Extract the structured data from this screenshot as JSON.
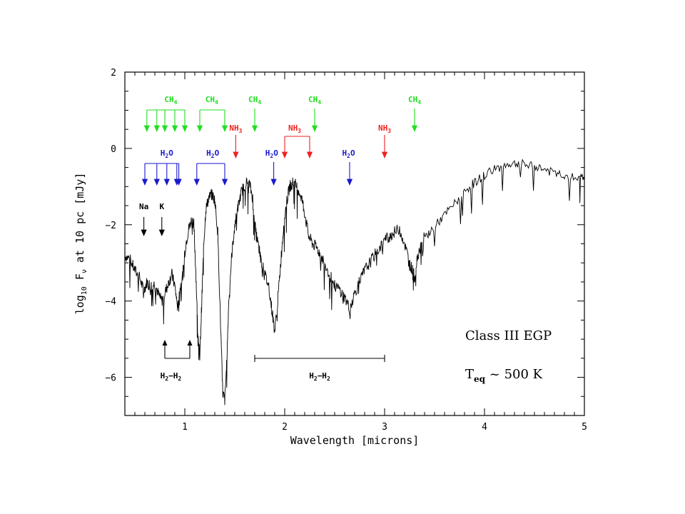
{
  "chart_data": {
    "type": "line",
    "title": "",
    "xlabel": "Wavelength  [microns]",
    "ylabel_parts": {
      "log": "log",
      "log_sub": "10",
      "F": " F",
      "F_sub": "ν",
      "rest": " at 10 pc [mJy]"
    },
    "xlim": [
      0.4,
      5.0
    ],
    "ylim": [
      -7,
      2
    ],
    "x_ticks": [
      1,
      2,
      3,
      4,
      5
    ],
    "x_tick_labels": [
      "1",
      "2",
      "3",
      "4",
      "5"
    ],
    "y_ticks": [
      -6,
      -4,
      -2,
      0,
      2
    ],
    "y_tick_labels": [
      "−6",
      "−4",
      "−2",
      "0",
      "2"
    ],
    "series": [
      {
        "color": "#000000",
        "points": [
          [
            0.4,
            -2.8
          ],
          [
            0.45,
            -2.9
          ],
          [
            0.5,
            -3.2
          ],
          [
            0.55,
            -3.4
          ],
          [
            0.59,
            -3.75
          ],
          [
            0.62,
            -3.5
          ],
          [
            0.66,
            -3.6
          ],
          [
            0.7,
            -3.55
          ],
          [
            0.74,
            -3.85
          ],
          [
            0.77,
            -4.0
          ],
          [
            0.8,
            -3.8
          ],
          [
            0.84,
            -3.5
          ],
          [
            0.87,
            -3.3
          ],
          [
            0.9,
            -3.6
          ],
          [
            0.93,
            -4.2
          ],
          [
            0.95,
            -3.7
          ],
          [
            0.98,
            -3.3
          ],
          [
            1.01,
            -2.5
          ],
          [
            1.04,
            -2.1
          ],
          [
            1.07,
            -1.85
          ],
          [
            1.09,
            -2.0
          ],
          [
            1.11,
            -3.2
          ],
          [
            1.13,
            -4.8
          ],
          [
            1.15,
            -5.5
          ],
          [
            1.17,
            -4.0
          ],
          [
            1.19,
            -2.5
          ],
          [
            1.21,
            -1.6
          ],
          [
            1.24,
            -1.3
          ],
          [
            1.27,
            -1.2
          ],
          [
            1.3,
            -1.35
          ],
          [
            1.33,
            -2.2
          ],
          [
            1.36,
            -4.8
          ],
          [
            1.38,
            -6.4
          ],
          [
            1.4,
            -6.6
          ],
          [
            1.42,
            -5.6
          ],
          [
            1.44,
            -4.0
          ],
          [
            1.47,
            -2.8
          ],
          [
            1.5,
            -2.0
          ],
          [
            1.53,
            -1.6
          ],
          [
            1.56,
            -1.2
          ],
          [
            1.59,
            -1.0
          ],
          [
            1.62,
            -0.9
          ],
          [
            1.65,
            -0.95
          ],
          [
            1.68,
            -1.3
          ],
          [
            1.71,
            -2.2
          ],
          [
            1.74,
            -2.6
          ],
          [
            1.76,
            -2.9
          ],
          [
            1.8,
            -3.3
          ],
          [
            1.84,
            -3.6
          ],
          [
            1.87,
            -4.2
          ],
          [
            1.9,
            -4.8
          ],
          [
            1.93,
            -4.0
          ],
          [
            1.96,
            -3.0
          ],
          [
            1.99,
            -2.0
          ],
          [
            2.02,
            -1.4
          ],
          [
            2.05,
            -1.0
          ],
          [
            2.08,
            -0.9
          ],
          [
            2.11,
            -0.95
          ],
          [
            2.14,
            -1.1
          ],
          [
            2.17,
            -1.3
          ],
          [
            2.2,
            -1.7
          ],
          [
            2.24,
            -2.3
          ],
          [
            2.28,
            -2.5
          ],
          [
            2.32,
            -2.6
          ],
          [
            2.36,
            -2.8
          ],
          [
            2.4,
            -3.0
          ],
          [
            2.45,
            -3.3
          ],
          [
            2.5,
            -3.6
          ],
          [
            2.55,
            -3.7
          ],
          [
            2.6,
            -3.9
          ],
          [
            2.65,
            -4.2
          ],
          [
            2.7,
            -3.8
          ],
          [
            2.75,
            -3.5
          ],
          [
            2.8,
            -3.2
          ],
          [
            2.85,
            -3.0
          ],
          [
            2.9,
            -2.8
          ],
          [
            2.95,
            -2.6
          ],
          [
            3.0,
            -2.4
          ],
          [
            3.05,
            -2.3
          ],
          [
            3.1,
            -2.2
          ],
          [
            3.15,
            -2.1
          ],
          [
            3.2,
            -2.5
          ],
          [
            3.25,
            -3.0
          ],
          [
            3.28,
            -3.2
          ],
          [
            3.3,
            -3.4
          ],
          [
            3.33,
            -2.8
          ],
          [
            3.38,
            -2.4
          ],
          [
            3.45,
            -2.2
          ],
          [
            3.55,
            -1.9
          ],
          [
            3.65,
            -1.6
          ],
          [
            3.75,
            -1.3
          ],
          [
            3.85,
            -1.0
          ],
          [
            3.95,
            -0.8
          ],
          [
            4.05,
            -0.6
          ],
          [
            4.15,
            -0.5
          ],
          [
            4.25,
            -0.4
          ],
          [
            4.35,
            -0.4
          ],
          [
            4.45,
            -0.45
          ],
          [
            4.55,
            -0.5
          ],
          [
            4.65,
            -0.6
          ],
          [
            4.75,
            -0.65
          ],
          [
            4.85,
            -0.75
          ],
          [
            4.95,
            -0.8
          ],
          [
            5.0,
            -0.7
          ]
        ]
      }
    ],
    "annotations": {
      "class_label": "Class III EGP",
      "teq_label": {
        "T": "T",
        "sub": "eq",
        "rest": " ~ 500 K"
      },
      "ch4": {
        "color": "#22dd22",
        "items": [
          {
            "label": "CH",
            "sub": "4",
            "x_label": 0.86,
            "arrows": [
              0.62,
              0.72,
              0.8,
              0.9,
              1.0
            ],
            "bracket": true
          },
          {
            "label": "CH",
            "sub": "4",
            "x_label": 1.27,
            "arrows": [
              1.15,
              1.4
            ],
            "bracket": true
          },
          {
            "label": "CH",
            "sub": "4",
            "x_label": 1.7,
            "arrows": [
              1.7
            ],
            "bracket": false
          },
          {
            "label": "CH",
            "sub": "4",
            "x_label": 2.3,
            "arrows": [
              2.3
            ],
            "bracket": false
          },
          {
            "label": "CH",
            "sub": "4",
            "x_label": 3.3,
            "arrows": [
              3.3
            ],
            "bracket": false
          }
        ]
      },
      "nh3": {
        "color": "#ee2222",
        "items": [
          {
            "label": "NH",
            "sub": "3",
            "x_label": 1.51,
            "arrows": [
              1.51
            ],
            "bracket": false
          },
          {
            "label": "NH",
            "sub": "3",
            "x_label": 2.1,
            "arrows": [
              2.0,
              2.25
            ],
            "bracket": true
          },
          {
            "label": "NH",
            "sub": "3",
            "x_label": 3.0,
            "arrows": [
              3.0
            ],
            "bracket": false
          }
        ]
      },
      "h2o": {
        "color": "#1a1acc",
        "items": [
          {
            "label": "H",
            "sub": "2",
            "tail": "O",
            "x_label": 0.82,
            "arrows": [
              0.6,
              0.72,
              0.82,
              0.92,
              0.94
            ],
            "bracket": true
          },
          {
            "label": "H",
            "sub": "2",
            "tail": "O",
            "x_label": 1.28,
            "arrows": [
              1.12,
              1.4
            ],
            "bracket": true
          },
          {
            "label": "H",
            "sub": "2",
            "tail": "O",
            "x_label": 1.87,
            "arrows": [
              1.89
            ],
            "bracket": false
          },
          {
            "label": "H",
            "sub": "2",
            "tail": "O",
            "x_label": 2.64,
            "arrows": [
              2.65
            ],
            "bracket": false
          }
        ]
      },
      "atomic": {
        "color": "#000000",
        "items": [
          {
            "label": "Na",
            "x_label": 0.59,
            "arrows": [
              0.59
            ]
          },
          {
            "label": "K",
            "x_label": 0.77,
            "arrows": [
              0.77
            ]
          }
        ]
      },
      "h2h2": [
        {
          "label": "H",
          "sub": "2",
          "mid": "−H",
          "sub2": "2",
          "x_label": 0.86
        },
        {
          "label": "H",
          "sub": "2",
          "mid": "−H",
          "sub2": "2",
          "x_label": 2.35
        }
      ]
    }
  }
}
